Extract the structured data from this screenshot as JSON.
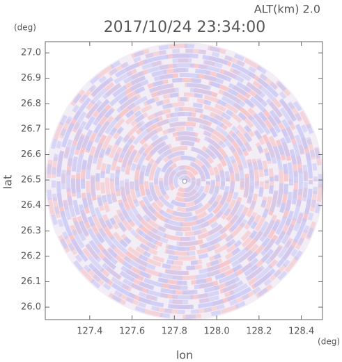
{
  "chart_data": {
    "type": "ppi",
    "title": "2017/10/24 23:34:00",
    "annotation": "ALT(km) 2.0",
    "x_label": "lon",
    "x_unit": "(deg)",
    "y_label": "lat",
    "y_unit": "(deg)",
    "xlim": [
      127.19,
      128.5
    ],
    "xticks": [
      {
        "value": 127.4,
        "label": "127.4"
      },
      {
        "value": 127.6,
        "label": "127.6"
      },
      {
        "value": 127.8,
        "label": "127.8"
      },
      {
        "value": 128.0,
        "label": "128.0"
      },
      {
        "value": 128.2,
        "label": "128.2"
      },
      {
        "value": 128.4,
        "label": "128.4"
      }
    ],
    "ylim": [
      25.951,
      27.044
    ],
    "yticks": [
      {
        "value": 26.0,
        "label": "26.0"
      },
      {
        "value": 26.1,
        "label": "26.1"
      },
      {
        "value": 26.2,
        "label": "26.2"
      },
      {
        "value": 26.3,
        "label": "26.3"
      },
      {
        "value": 26.4,
        "label": "26.4"
      },
      {
        "value": 26.5,
        "label": "26.5"
      },
      {
        "value": 26.6,
        "label": "26.6"
      },
      {
        "value": 26.7,
        "label": "26.7"
      },
      {
        "value": 26.8,
        "label": "26.8"
      },
      {
        "value": 26.9,
        "label": "26.9"
      },
      {
        "value": 27.0,
        "label": "27.0"
      }
    ]
  }
}
